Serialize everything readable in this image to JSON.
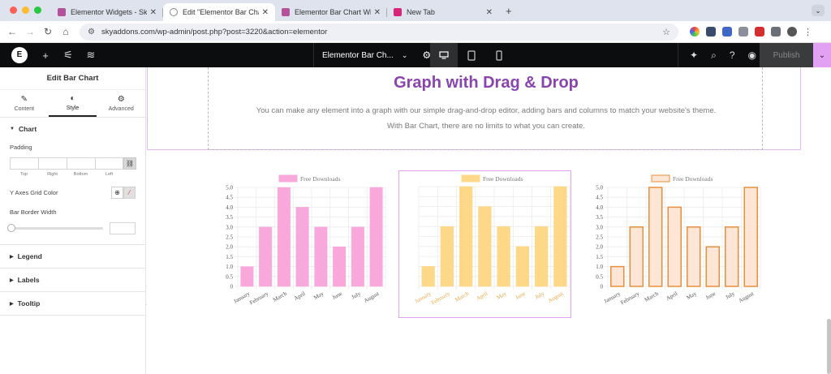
{
  "browser": {
    "tabs": [
      {
        "title": "Elementor Widgets - Sky Add",
        "active": false
      },
      {
        "title": "Edit \"Elementor Bar Chart Wi",
        "active": true
      },
      {
        "title": "Elementor Bar Chart Widget",
        "active": false
      },
      {
        "title": "New Tab",
        "active": false
      }
    ],
    "url": "skyaddons.com/wp-admin/post.php?post=3220&action=elementor"
  },
  "topbar": {
    "doc_title": "Elementor Bar Ch...",
    "publish_label": "Publish"
  },
  "panel": {
    "title": "Edit Bar Chart",
    "tabs": [
      {
        "label": "Content",
        "icon": "pencil-icon"
      },
      {
        "label": "Style",
        "icon": "contrast-icon"
      },
      {
        "label": "Advanced",
        "icon": "gear-icon"
      }
    ],
    "chart_section": "Chart",
    "padding_label": "Padding",
    "padding_sides": [
      "Top",
      "Right",
      "Bottom",
      "Left"
    ],
    "grid_color_label": "Y Axes Grid Color",
    "border_width_label": "Bar Border Width",
    "sections": [
      "Legend",
      "Labels",
      "Tooltip"
    ]
  },
  "canvas": {
    "heading": "Graph with Drag & Drop",
    "description_line1": "You can make any element into a graph with our simple drag-and-drop editor, adding bars and columns to match your website's theme.",
    "description_line2": "With Bar Chart, there are no limits to what you can create."
  },
  "chart_data": [
    {
      "type": "bar",
      "categories": [
        "January",
        "February",
        "March",
        "April",
        "May",
        "June",
        "July",
        "August"
      ],
      "series": [
        {
          "name": "Free Downloads",
          "values": [
            1,
            3,
            5,
            4,
            3,
            2,
            3,
            5
          ]
        }
      ],
      "ylim": [
        0,
        5
      ],
      "yticks": [
        "0",
        "0.5",
        "1.0",
        "1.5",
        "2.0",
        "2.5",
        "3.0",
        "3.5",
        "4.0",
        "4.5",
        "5.0"
      ],
      "legend": "top",
      "grid": true,
      "colors": {
        "fill": "#f9a8dc",
        "stroke": "#f9a8dc",
        "tick_text": "#555555"
      }
    },
    {
      "type": "bar",
      "categories": [
        "January",
        "February",
        "March",
        "April",
        "May",
        "June",
        "July",
        "August"
      ],
      "series": [
        {
          "name": "Free Downloads",
          "values": [
            1,
            3,
            5,
            4,
            3,
            2,
            3,
            5
          ]
        }
      ],
      "ylim": [
        0,
        5
      ],
      "yticks": [],
      "legend": "top",
      "grid": true,
      "colors": {
        "fill": "#fdd889",
        "stroke": "#fdd889",
        "tick_text": "#e9a949"
      }
    },
    {
      "type": "bar",
      "categories": [
        "January",
        "February",
        "March",
        "April",
        "May",
        "June",
        "July",
        "August"
      ],
      "series": [
        {
          "name": "Free Downloads",
          "values": [
            1,
            3,
            5,
            4,
            3,
            2,
            3,
            5
          ]
        }
      ],
      "ylim": [
        0,
        5
      ],
      "yticks": [
        "0",
        "0.5",
        "1.0",
        "1.5",
        "2.0",
        "2.5",
        "3.0",
        "3.5",
        "4.0",
        "4.5",
        "5.0"
      ],
      "legend": "top",
      "grid": true,
      "colors": {
        "fill": "#fde6d6",
        "stroke": "#e88f3c",
        "tick_text": "#555555"
      }
    }
  ]
}
